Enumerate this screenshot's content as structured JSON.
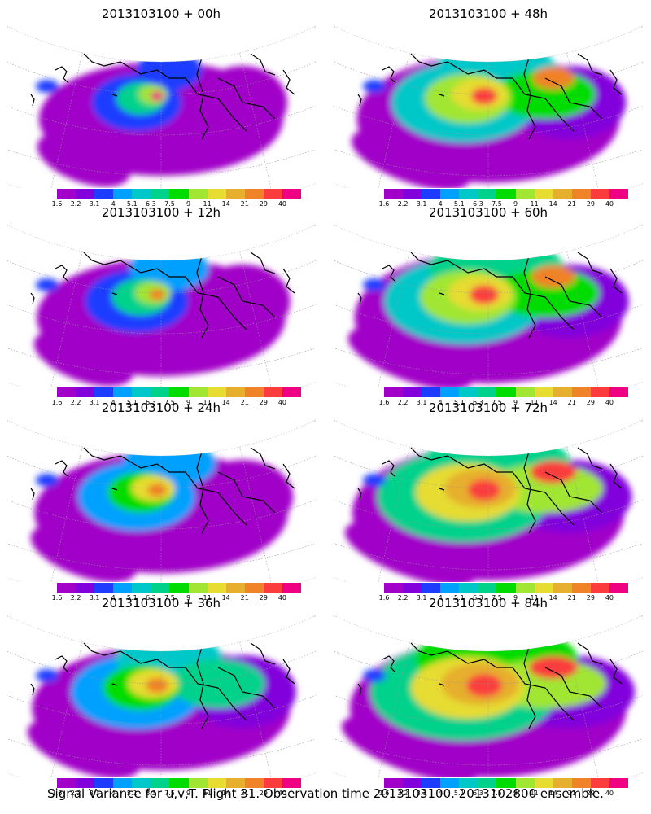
{
  "panels": [
    {
      "title": "2013103100 + 00h",
      "step": 0
    },
    {
      "title": "2013103100 + 48h",
      "step": 4
    },
    {
      "title": "2013103100 + 12h",
      "step": 1
    },
    {
      "title": "2013103100 + 60h",
      "step": 5
    },
    {
      "title": "2013103100 + 24h",
      "step": 2
    },
    {
      "title": "2013103100 + 72h",
      "step": 6
    },
    {
      "title": "2013103100 + 36h",
      "step": 3
    },
    {
      "title": "2013103100 + 84h",
      "step": 7
    }
  ],
  "colorbar": {
    "colors": [
      "#a000c8",
      "#8200dc",
      "#1e3cff",
      "#00a0ff",
      "#00c8c8",
      "#00d28c",
      "#00dc00",
      "#a0e632",
      "#e6dc32",
      "#e6af2d",
      "#f08228",
      "#fa3c3c",
      "#f00082"
    ],
    "labels": [
      "1.6",
      "2.2",
      "3.1",
      "4",
      "5.1",
      "6.3",
      "7.5",
      "9",
      "11",
      "14",
      "21",
      "29",
      "40"
    ]
  },
  "caption": "Signal Variance for u,v,T. Flight 31. Observation time 2013103100. 2013102800 ensemble."
}
